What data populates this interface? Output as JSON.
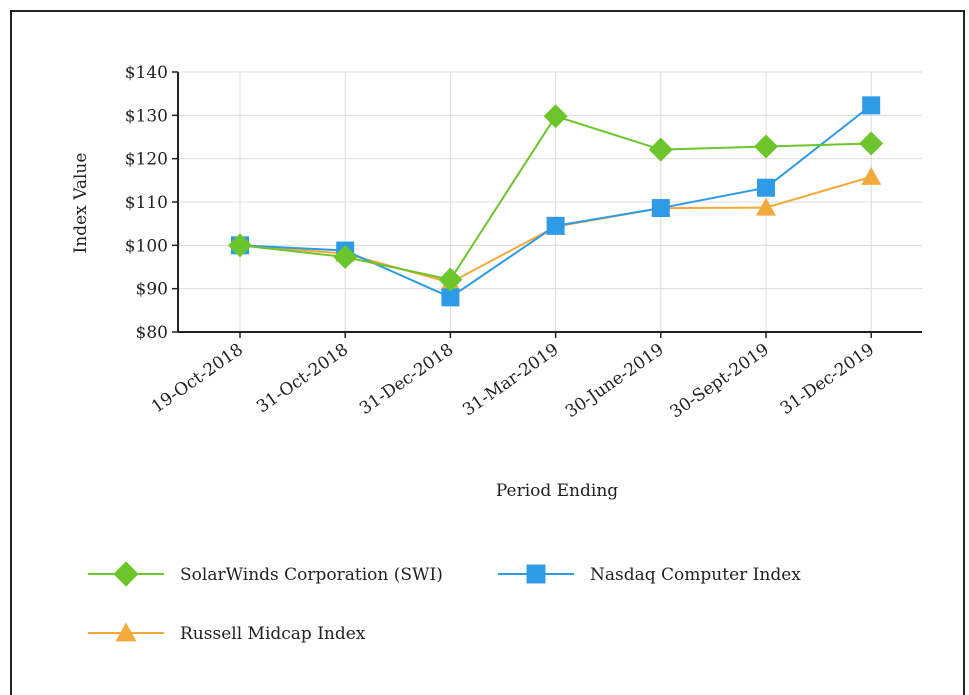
{
  "chart_data": {
    "type": "line",
    "xlabel": "Period Ending",
    "ylabel": "Index Value",
    "ylim": [
      80,
      140
    ],
    "yticks": [
      80,
      90,
      100,
      110,
      120,
      130,
      140
    ],
    "ytick_labels": [
      "$80",
      "$90",
      "$100",
      "$110",
      "$120",
      "$130",
      "$140"
    ],
    "categories": [
      "19-Oct-2018",
      "31-Oct-2018",
      "31-Dec-2018",
      "31-Mar-2019",
      "30-June-2019",
      "30-Sept-2019",
      "31-Dec-2019"
    ],
    "grid": true,
    "legend_position": "bottom",
    "series": [
      {
        "name": "SolarWinds Corporation (SWI)",
        "marker": "diamond",
        "color": "#6cc62b",
        "values": [
          100,
          97.3,
          92.1,
          129.8,
          122.1,
          122.8,
          123.5
        ]
      },
      {
        "name": "Nasdaq Computer Index",
        "marker": "square",
        "color": "#2e9be6",
        "values": [
          100,
          98.8,
          88.0,
          104.5,
          108.6,
          113.3,
          132.3
        ]
      },
      {
        "name": "Russell Midcap Index",
        "marker": "triangle",
        "color": "#f3a93b",
        "values": [
          100,
          98.1,
          91.4,
          104.3,
          108.6,
          108.7,
          115.8
        ]
      }
    ]
  }
}
